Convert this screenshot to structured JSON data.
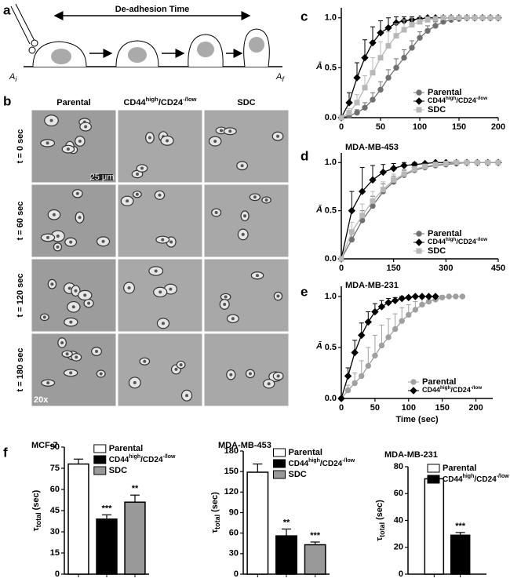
{
  "panel_a": {
    "letter": "a",
    "label": "De-adhesion Time",
    "start": "A",
    "start_sub": "i",
    "end": "A",
    "end_sub": "f"
  },
  "panel_b": {
    "letter": "b",
    "columns": [
      "Parental",
      [
        "CD44",
        "high",
        "/CD24",
        "-/low"
      ],
      "SDC"
    ],
    "rows": [
      "t = 0 sec",
      "t = 60 sec",
      "t = 120 sec",
      "t = 180 sec"
    ],
    "scale_bar": "25 μm",
    "magnification": "20x"
  },
  "chart_data": [
    {
      "type": "line",
      "panel_label": "c",
      "ylabel": "Ā",
      "x": [
        0,
        10,
        20,
        30,
        40,
        50,
        60,
        70,
        80,
        90,
        100,
        110,
        120,
        130,
        140,
        150,
        160,
        170,
        180,
        190,
        200
      ],
      "xlim": [
        0,
        200
      ],
      "xticks": [
        0,
        50,
        100,
        150,
        200
      ],
      "ylim": [
        0,
        1.1
      ],
      "yticks": [
        {
          "value": 0,
          "label": "0.0"
        },
        {
          "value": 0.5,
          "label": "0.5"
        },
        {
          "value": 1,
          "label": "1.0"
        }
      ],
      "legend": "lower right",
      "series": [
        {
          "name": "Parental",
          "color": "#707070",
          "marker": "circle",
          "values": [
            0,
            0.02,
            0.05,
            0.1,
            0.18,
            0.28,
            0.4,
            0.5,
            0.6,
            0.7,
            0.8,
            0.87,
            0.92,
            0.96,
            0.98,
            0.99,
            1,
            1,
            1,
            1,
            1
          ],
          "errors": [
            0.01,
            0.02,
            0.03,
            0.05,
            0.07,
            0.08,
            0.08,
            0.09,
            0.08,
            0.07,
            0.06,
            0.05,
            0.04,
            0.03,
            0.02,
            0.02,
            0.01,
            0.01,
            0.01,
            0.01,
            0.01
          ]
        },
        {
          "name": [
            "CD44",
            "high",
            "/CD24",
            "-/low"
          ],
          "color": "#000000",
          "marker": "diamond",
          "values": [
            0,
            0.15,
            0.4,
            0.6,
            0.75,
            0.85,
            0.9,
            0.95,
            0.97,
            0.98,
            0.99,
            1,
            1,
            1,
            1,
            1,
            1,
            1,
            1,
            1,
            1
          ],
          "errors": [
            0.01,
            0.1,
            0.15,
            0.18,
            0.16,
            0.12,
            0.1,
            0.06,
            0.04,
            0.03,
            0.02,
            0.01,
            0.01,
            0.01,
            0.01,
            0.01,
            0.01,
            0.01,
            0.01,
            0.01,
            0.01
          ]
        },
        {
          "name": "SDC",
          "color": "#b8b8b8",
          "marker": "square",
          "values": [
            0,
            0.05,
            0.15,
            0.3,
            0.45,
            0.6,
            0.72,
            0.82,
            0.88,
            0.93,
            0.96,
            0.98,
            0.99,
            1,
            1,
            1,
            1,
            1,
            1,
            1,
            1
          ],
          "errors": [
            0.01,
            0.04,
            0.08,
            0.12,
            0.15,
            0.16,
            0.14,
            0.12,
            0.1,
            0.07,
            0.05,
            0.03,
            0.02,
            0.01,
            0.01,
            0.01,
            0.01,
            0.01,
            0.01,
            0.01,
            0.01
          ]
        }
      ]
    },
    {
      "type": "line",
      "panel_label": "d",
      "title": "MDA-MB-453",
      "ylabel": "Ā",
      "x": [
        0,
        30,
        60,
        90,
        120,
        150,
        180,
        210,
        240,
        270,
        300,
        330,
        360,
        390,
        420,
        450
      ],
      "xlim": [
        0,
        450
      ],
      "xticks": [
        0,
        150,
        300,
        450
      ],
      "ylim": [
        0,
        1.1
      ],
      "yticks": [
        {
          "value": 0,
          "label": "0.0"
        },
        {
          "value": 0.5,
          "label": "0.5"
        },
        {
          "value": 1,
          "label": "1.0"
        }
      ],
      "legend": "lower right",
      "series": [
        {
          "name": "Parental",
          "color": "#707070",
          "marker": "circle",
          "values": [
            0,
            0.2,
            0.4,
            0.55,
            0.7,
            0.8,
            0.87,
            0.92,
            0.95,
            0.97,
            0.98,
            0.99,
            1,
            1,
            1,
            1
          ],
          "errors": [
            0.01,
            0.08,
            0.1,
            0.1,
            0.08,
            0.06,
            0.05,
            0.04,
            0.03,
            0.02,
            0.02,
            0.01,
            0.01,
            0.01,
            0.01,
            0.01
          ]
        },
        {
          "name": [
            "CD44",
            "high",
            "/CD24",
            "-/low"
          ],
          "color": "#000000",
          "marker": "diamond",
          "values": [
            0,
            0.5,
            0.7,
            0.82,
            0.9,
            0.94,
            0.97,
            0.98,
            0.99,
            1,
            1,
            1,
            1,
            1,
            1,
            1
          ],
          "errors": [
            0.01,
            0.2,
            0.25,
            0.15,
            0.08,
            0.05,
            0.03,
            0.02,
            0.01,
            0.01,
            0.01,
            0.01,
            0.01,
            0.01,
            0.01,
            0.01
          ]
        },
        {
          "name": "SDC",
          "color": "#b8b8b8",
          "marker": "square",
          "values": [
            0,
            0.28,
            0.45,
            0.6,
            0.72,
            0.82,
            0.88,
            0.93,
            0.96,
            0.98,
            0.99,
            1,
            1,
            1,
            1,
            1
          ],
          "errors": [
            0.01,
            0.1,
            0.12,
            0.1,
            0.08,
            0.06,
            0.05,
            0.03,
            0.02,
            0.02,
            0.01,
            0.01,
            0.01,
            0.01,
            0.01,
            0.01
          ]
        }
      ]
    },
    {
      "type": "line",
      "panel_label": "e",
      "title": "MDA-MB-231",
      "ylabel": "Ā",
      "xlabel": "Time (sec)",
      "x": [
        0,
        10,
        20,
        30,
        40,
        50,
        60,
        70,
        80,
        90,
        100,
        110,
        120,
        130,
        140,
        150,
        160,
        170,
        180
      ],
      "xlim": [
        0,
        225
      ],
      "xticks": [
        0,
        50,
        100,
        150,
        200
      ],
      "ylim": [
        0,
        1.1
      ],
      "yticks": [
        {
          "value": 0,
          "label": "0.0"
        },
        {
          "value": 0.5,
          "label": "0.5"
        },
        {
          "value": 1,
          "label": "1.0"
        }
      ],
      "legend": "lower right",
      "series": [
        {
          "name": "Parental",
          "color": "#a0a0a0",
          "marker": "circle",
          "values": [
            0,
            0.08,
            0.15,
            0.22,
            0.32,
            0.42,
            0.52,
            0.6,
            0.68,
            0.76,
            0.82,
            0.87,
            0.92,
            0.95,
            0.97,
            0.99,
            1,
            1,
            1
          ],
          "errors": [
            0.01,
            0.05,
            0.1,
            0.15,
            0.18,
            0.2,
            0.2,
            0.18,
            0.15,
            0.13,
            0.1,
            0.08,
            0.06,
            0.04,
            0.03,
            0.02,
            0.01,
            0.01,
            0.01
          ]
        },
        {
          "name": [
            "CD44",
            "high",
            "/CD24",
            "-/low"
          ],
          "color": "#000000",
          "marker": "diamond",
          "values": [
            0,
            0.22,
            0.45,
            0.62,
            0.75,
            0.85,
            0.9,
            0.94,
            0.96,
            0.98,
            0.99,
            1,
            1,
            1,
            1,
            null,
            null,
            null,
            null
          ],
          "errors": [
            0.01,
            0.08,
            0.12,
            0.12,
            0.1,
            0.08,
            0.06,
            0.04,
            0.03,
            0.02,
            0.01,
            0.01,
            0.01,
            0.01,
            0.01,
            null,
            null,
            null,
            null
          ]
        }
      ]
    },
    {
      "type": "bar",
      "panel_label": "f",
      "title": "MCF-7",
      "ylabel": "τ",
      "ylabel_sub": "total",
      "ylabel_unit": "(sec)",
      "ylim": [
        0,
        90
      ],
      "yticks": [
        0,
        15,
        30,
        45,
        60,
        75,
        90
      ],
      "series": [
        {
          "name": "Parental",
          "color": "#ffffff",
          "values": [
            78
          ],
          "errors": [
            3.5
          ]
        },
        {
          "name": [
            "CD44",
            "high",
            "/CD24",
            "-/low"
          ],
          "color": "#000000",
          "values": [
            39
          ],
          "errors": [
            3
          ],
          "significance": "***"
        },
        {
          "name": "SDC",
          "color": "#999999",
          "values": [
            51
          ],
          "errors": [
            5
          ],
          "significance": "**"
        }
      ]
    },
    {
      "type": "bar",
      "title": "MDA-MB-453",
      "ylabel": "τ",
      "ylabel_sub": "total",
      "ylabel_unit": "(sec)",
      "ylim": [
        0,
        180
      ],
      "yticks": [
        0,
        30,
        60,
        90,
        120,
        150,
        180
      ],
      "series": [
        {
          "name": "Parental",
          "color": "#ffffff",
          "values": [
            149
          ],
          "errors": [
            12
          ]
        },
        {
          "name": [
            "CD44",
            "high",
            "/CD24",
            "-/low"
          ],
          "color": "#000000",
          "values": [
            56
          ],
          "errors": [
            10
          ],
          "significance": "**"
        },
        {
          "name": "SDC",
          "color": "#999999",
          "values": [
            43
          ],
          "errors": [
            4
          ],
          "significance": "***"
        }
      ]
    },
    {
      "type": "bar",
      "title": "MDA-MB-231",
      "ylabel": "τ",
      "ylabel_sub": "total",
      "ylabel_unit": "(sec)",
      "ylim": [
        0,
        80
      ],
      "yticks": [
        0,
        20,
        40,
        60,
        80
      ],
      "series": [
        {
          "name": "Parental",
          "color": "#ffffff",
          "values": [
            71
          ],
          "errors": [
            2
          ]
        },
        {
          "name": [
            "CD44",
            "high",
            "/CD24",
            "-/low"
          ],
          "color": "#000000",
          "values": [
            29
          ],
          "errors": [
            2
          ],
          "significance": "***"
        }
      ]
    }
  ]
}
